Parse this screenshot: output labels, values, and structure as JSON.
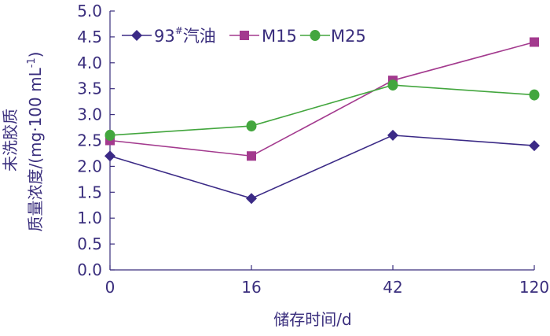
{
  "chart_data": {
    "type": "line",
    "categories": [
      "0",
      "16",
      "42",
      "120"
    ],
    "xlabel": "储存时间/d",
    "ylabel_line1": "未洗胶质",
    "ylabel_line2": "质量浓度/(mg·100 mL",
    "ylabel_sup": "-1",
    "ylabel_close": ")",
    "ylim": [
      0.0,
      5.0
    ],
    "yticks": [
      "0.0",
      "0.5",
      "1.0",
      "1.5",
      "2.0",
      "2.5",
      "3.0",
      "3.5",
      "4.0",
      "4.5",
      "5.0"
    ],
    "grid": false,
    "legend_placement": "top-left",
    "series": [
      {
        "name": "93",
        "name_sup": "#",
        "name_suffix": "汽油",
        "marker": "diamond",
        "color": "#3b2a86",
        "values": [
          2.2,
          1.38,
          2.6,
          2.4
        ]
      },
      {
        "name": "M15",
        "marker": "square",
        "color": "#a33a8e",
        "values": [
          2.5,
          2.2,
          3.66,
          4.4
        ]
      },
      {
        "name": "M25",
        "marker": "circle",
        "color": "#43a63e",
        "values": [
          2.6,
          2.78,
          3.57,
          3.38
        ]
      }
    ]
  }
}
